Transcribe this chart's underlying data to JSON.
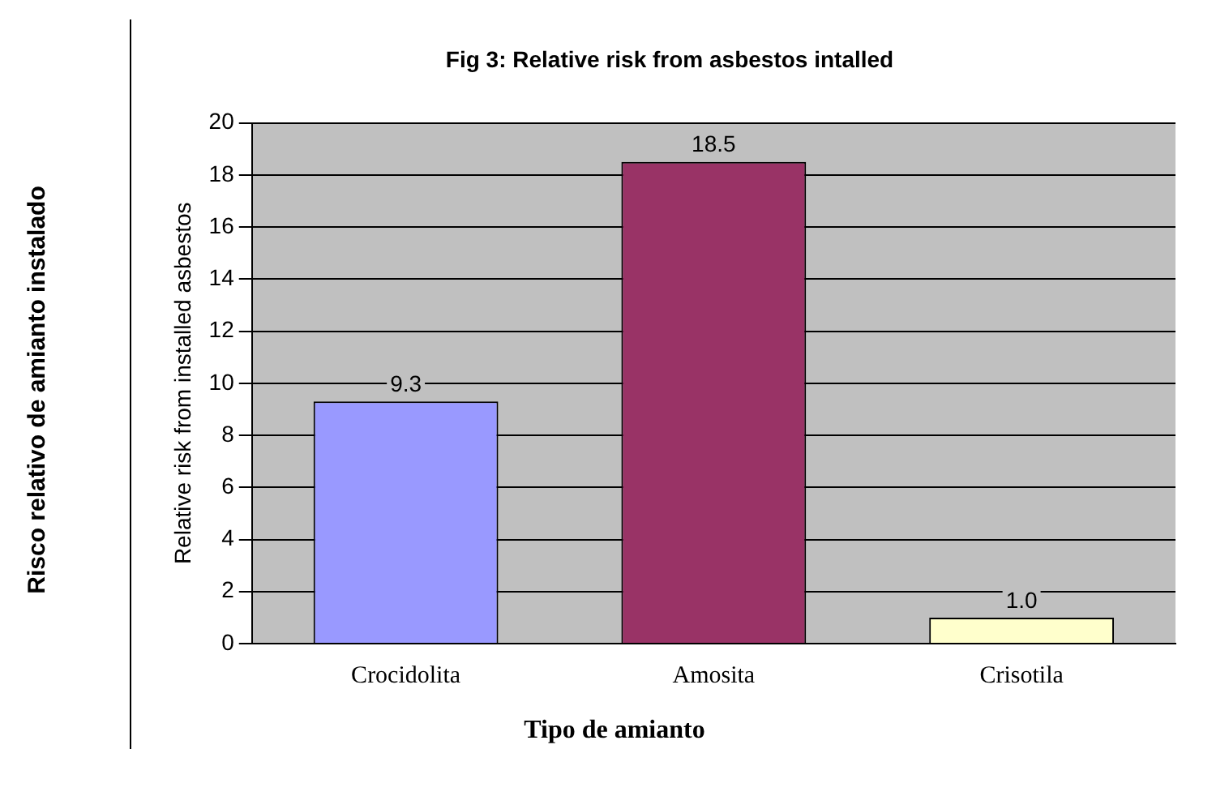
{
  "chart_data": {
    "type": "bar",
    "title": "Fig 3: Relative risk from asbestos intalled",
    "ylabel": "Relative risk from installed asbestos",
    "xlabel": "Tipo de amianto",
    "annotations": [
      "Risco relativo de amianto instalado"
    ],
    "categories": [
      "Crocidolita",
      "Amosita",
      "Crisotila"
    ],
    "values": [
      9.3,
      18.5,
      1.0
    ],
    "colors": [
      "#9999ff",
      "#993366",
      "#ffffcc"
    ],
    "value_labels": [
      "9.3",
      "18.5",
      "1.0"
    ],
    "ylim": [
      0,
      20
    ],
    "yticks": [
      0,
      2,
      4,
      6,
      8,
      10,
      12,
      14,
      16,
      18,
      20
    ],
    "grid": "y",
    "legend": false
  }
}
